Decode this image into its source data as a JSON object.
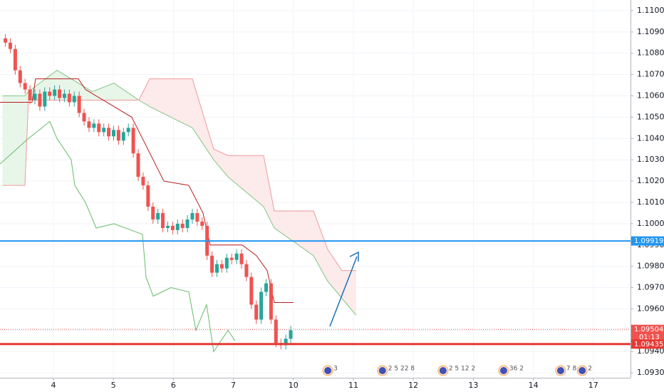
{
  "chart_data": {
    "type": "candlestick",
    "x": [
      -0.8,
      -0.718,
      -0.636,
      -0.554,
      -0.472,
      -0.39,
      -0.308,
      -0.226,
      -0.144,
      -0.062,
      0.02,
      0.102,
      0.184,
      0.266,
      0.348,
      0.43,
      0.512,
      0.594,
      0.676,
      0.758,
      0.84,
      0.922,
      1.004,
      1.086,
      1.168,
      1.25,
      1.332,
      1.414,
      1.496,
      1.578,
      1.66,
      1.742,
      1.824,
      1.906,
      1.988,
      2.07,
      2.152,
      2.234,
      2.316,
      2.398,
      2.48,
      2.562,
      2.644,
      2.726,
      2.808,
      2.89,
      2.972,
      3.054,
      3.136,
      3.218,
      3.3,
      3.382,
      3.464,
      3.546,
      3.628,
      3.71,
      3.792,
      3.874,
      3.956
    ],
    "open": [
      1.1087,
      1.1085,
      1.1082,
      1.1072,
      1.1066,
      1.1063,
      1.1058,
      1.1061,
      1.1055,
      1.1062,
      1.106,
      1.1063,
      1.1059,
      1.1061,
      1.1057,
      1.106,
      1.1052,
      1.1048,
      1.1045,
      1.1047,
      1.1043,
      1.1045,
      1.1041,
      1.1044,
      1.1039,
      1.1043,
      1.1045,
      1.1033,
      1.1022,
      1.1018,
      1.1008,
      1.1002,
      1.1005,
      1.0998,
      1.0999,
      1.0997,
      1.1,
      1.0998,
      1.1002,
      1.1005,
      1.1001,
      1.0999,
      1.0985,
      1.0977,
      1.0981,
      1.0979,
      1.0984,
      1.0983,
      1.0986,
      1.0981,
      1.0975,
      1.0962,
      1.0955,
      1.0968,
      1.0972,
      1.0955,
      1.0944,
      1.0943,
      1.0946
    ],
    "high": [
      1.1089,
      1.1087,
      1.1084,
      1.1074,
      1.1068,
      1.1065,
      1.1063,
      1.1063,
      1.1064,
      1.1064,
      1.1065,
      1.1065,
      1.1063,
      1.1063,
      1.1062,
      1.1062,
      1.1054,
      1.105,
      1.1049,
      1.1049,
      1.1047,
      1.1047,
      1.1046,
      1.1046,
      1.1045,
      1.1047,
      1.1047,
      1.1035,
      1.1024,
      1.102,
      1.101,
      1.1007,
      1.1007,
      1.1001,
      1.1001,
      1.1002,
      1.1002,
      1.1004,
      1.1007,
      1.1007,
      1.1003,
      1.1001,
      1.0987,
      1.0983,
      1.0983,
      1.0986,
      1.0986,
      1.0988,
      1.0988,
      1.0983,
      1.0977,
      1.0964,
      1.097,
      1.0974,
      1.0974,
      1.0957,
      1.0946,
      1.0948,
      1.0952
    ],
    "low": [
      1.1083,
      1.108,
      1.107,
      1.1064,
      1.1061,
      1.1056,
      1.1056,
      1.1053,
      1.1053,
      1.1058,
      1.1058,
      1.1057,
      1.1057,
      1.1055,
      1.1055,
      1.105,
      1.1046,
      1.1043,
      1.1043,
      1.1041,
      1.1041,
      1.1039,
      1.1039,
      1.1037,
      1.1037,
      1.1041,
      1.1031,
      1.102,
      1.1016,
      1.1006,
      1.1,
      1.1,
      1.0996,
      1.0996,
      1.0995,
      1.0995,
      1.0996,
      1.0996,
      1.1,
      1.0999,
      1.0997,
      1.0983,
      1.0975,
      1.0975,
      1.0977,
      1.0977,
      1.0981,
      1.0981,
      1.0979,
      1.0973,
      1.096,
      1.0953,
      1.0953,
      1.0966,
      1.0953,
      1.0942,
      1.0941,
      1.0941,
      1.0944
    ],
    "close": [
      1.1085,
      1.1082,
      1.1072,
      1.1066,
      1.1063,
      1.1058,
      1.1061,
      1.1055,
      1.1062,
      1.106,
      1.1063,
      1.1059,
      1.1061,
      1.1057,
      1.106,
      1.1052,
      1.1048,
      1.1045,
      1.1047,
      1.1043,
      1.1045,
      1.1041,
      1.1044,
      1.1039,
      1.1043,
      1.1045,
      1.1033,
      1.1022,
      1.1018,
      1.1008,
      1.1002,
      1.1005,
      1.0998,
      1.0999,
      1.0997,
      1.1,
      1.0998,
      1.1002,
      1.1005,
      1.1001,
      1.0999,
      1.0985,
      1.0977,
      1.0981,
      1.0979,
      1.0984,
      1.0983,
      1.0986,
      1.0981,
      1.0975,
      1.0962,
      1.0955,
      1.0968,
      1.0972,
      1.0955,
      1.0944,
      1.0943,
      1.0946,
      1.095
    ],
    "up_color": "#26a69a",
    "down_color": "#ef5350",
    "cloud": {
      "x": [
        -0.85,
        -0.475,
        -0.416,
        0.06,
        0.653,
        1.01,
        1.425,
        1.603,
        2.316,
        2.672,
        2.91,
        3.504,
        3.682,
        4.335,
        4.572,
        4.81,
        5.047
      ],
      "span_a": [
        1.106,
        1.106,
        1.1062,
        1.1072,
        1.1062,
        1.1066,
        1.1058,
        1.1055,
        1.1045,
        1.103,
        1.1022,
        1.1008,
        1.0998,
        1.0985,
        1.0973,
        1.0965,
        1.0957
      ],
      "span_b": [
        1.1018,
        1.1018,
        1.1058,
        1.1058,
        1.1058,
        1.1058,
        1.1058,
        1.1068,
        1.1068,
        1.1035,
        1.1032,
        1.1032,
        1.1006,
        1.1006,
        1.0988,
        1.0978,
        1.0978
      ],
      "span_a_color": "#81c784",
      "span_b_color": "#ef9a9a",
      "bull_fill": "#e8f5e9",
      "bear_fill": "#fdeaea"
    },
    "lines": [
      {
        "color": "#b71c1c",
        "x": [
          -0.89,
          -0.356,
          -0.297,
          0.416,
          0.534,
          1.306,
          1.485,
          1.841,
          2.257,
          2.494,
          2.613,
          3.147,
          3.385,
          3.563,
          3.682,
          4.002
        ],
        "values": [
          1.1057,
          1.1057,
          1.1068,
          1.1068,
          1.1063,
          1.105,
          1.104,
          1.102,
          1.1018,
          1.1005,
          1.099,
          1.099,
          1.0985,
          1.0978,
          1.0963,
          1.0963
        ]
      },
      {
        "color": "#66bb6a",
        "x": [
          -0.89,
          -0.416,
          -0.059,
          0.059,
          0.297,
          0.356,
          0.534,
          0.713,
          1.01,
          1.485,
          1.544,
          1.663,
          1.96,
          2.257,
          2.375,
          2.553,
          2.672,
          2.91,
          3.029
        ],
        "values": [
          1.1028,
          1.104,
          1.1048,
          1.104,
          1.103,
          1.1018,
          1.101,
          1.0998,
          1.1,
          1.0995,
          1.0975,
          1.0966,
          1.097,
          1.0968,
          1.095,
          1.0962,
          1.094,
          1.095,
          1.0945
        ]
      }
    ],
    "levels": [
      {
        "value": 1.09919,
        "label": "1.09919",
        "color": "#2196f3",
        "style": "solid"
      },
      {
        "value": 1.09504,
        "label": "1.09504",
        "color": "#ef5350",
        "style": "dotted",
        "timer": "01:13"
      },
      {
        "value": 1.09435,
        "label": "1.09435",
        "color": "#e53935",
        "style": "thick"
      }
    ],
    "events": [
      {
        "x": 4.67,
        "label": "3"
      },
      {
        "x": 5.58,
        "label": "2 5 22 8"
      },
      {
        "x": 6.59,
        "label": "2 5 12 2"
      },
      {
        "x": 7.6,
        "label": "36 2"
      },
      {
        "x": 8.55,
        "label": "7 8"
      },
      {
        "x": 8.91,
        "label": "2"
      }
    ],
    "xlim": [
      -0.89,
      9.62
    ],
    "xticks": [
      {
        "value": 0,
        "label": "4"
      },
      {
        "value": 1,
        "label": "5"
      },
      {
        "value": 2,
        "label": "6"
      },
      {
        "value": 3,
        "label": "7"
      },
      {
        "value": 4,
        "label": "10"
      },
      {
        "value": 5,
        "label": "11"
      },
      {
        "value": 6,
        "label": "12"
      },
      {
        "value": 7,
        "label": "13"
      },
      {
        "value": 8,
        "label": "14"
      },
      {
        "value": 9,
        "label": "17"
      }
    ],
    "ylim": [
      1.09277,
      1.1105
    ],
    "yticks": [
      {
        "value": 1.093,
        "label": "1.09300"
      },
      {
        "value": 1.094,
        "label": "1.09400"
      },
      {
        "value": 1.095,
        "label": "1.09500"
      },
      {
        "value": 1.096,
        "label": "1.09600"
      },
      {
        "value": 1.097,
        "label": "1.09700"
      },
      {
        "value": 1.098,
        "label": "1.09800"
      },
      {
        "value": 1.099,
        "label": "1.09900"
      },
      {
        "value": 1.1,
        "label": "1.10000"
      },
      {
        "value": 1.101,
        "label": "1.10100"
      },
      {
        "value": 1.102,
        "label": "1.10200"
      },
      {
        "value": 1.103,
        "label": "1.10300"
      },
      {
        "value": 1.104,
        "label": "1.10400"
      },
      {
        "value": 1.105,
        "label": "1.10500"
      },
      {
        "value": 1.106,
        "label": "1.10600"
      },
      {
        "value": 1.107,
        "label": "1.10700"
      },
      {
        "value": 1.108,
        "label": "1.10800"
      },
      {
        "value": 1.109,
        "label": "1.10900"
      },
      {
        "value": 1.11,
        "label": "1.11000"
      }
    ],
    "grid": true
  }
}
